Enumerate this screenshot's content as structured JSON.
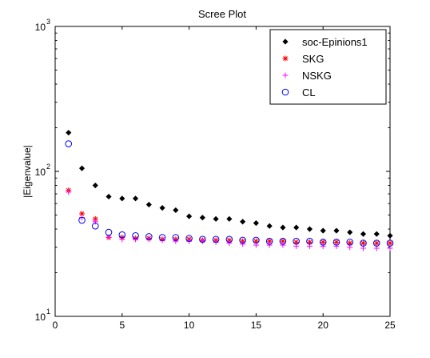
{
  "chart_data": {
    "type": "scatter",
    "title": "Scree Plot",
    "xlabel": "",
    "ylabel": "|Eigenvalue|",
    "xlim": [
      0,
      25
    ],
    "ylim": [
      10,
      1000
    ],
    "yscale": "log",
    "xticks": [
      0,
      5,
      10,
      15,
      20,
      25
    ],
    "yticks": [
      {
        "value": 10,
        "base": "10",
        "exp": "1"
      },
      {
        "value": 100,
        "base": "10",
        "exp": "2"
      },
      {
        "value": 1000,
        "base": "10",
        "exp": "3"
      }
    ],
    "grid": false,
    "legend_position": "top-right",
    "series": [
      {
        "name": "soc-Epinions1",
        "marker": "dot",
        "color": "#000000",
        "x": [
          1,
          2,
          3,
          4,
          5,
          6,
          7,
          8,
          9,
          10,
          11,
          12,
          13,
          14,
          15,
          16,
          17,
          18,
          19,
          20,
          21,
          22,
          23,
          24,
          25
        ],
        "y": [
          185,
          105,
          80,
          67,
          65,
          65,
          59,
          56,
          54,
          49,
          48,
          47,
          47,
          45,
          44,
          42,
          41,
          41,
          40,
          39,
          39,
          38,
          37,
          37,
          36
        ]
      },
      {
        "name": "SKG",
        "marker": "asterisk",
        "color": "#ff0000",
        "x": [
          1,
          2,
          3,
          4,
          5,
          6,
          7,
          8,
          9,
          10,
          11,
          12,
          13,
          14,
          15,
          16,
          17,
          18,
          19,
          20,
          21,
          22,
          23,
          24,
          25
        ],
        "y": [
          74,
          51,
          47,
          35,
          35,
          34.5,
          34.5,
          34,
          34,
          34,
          33.5,
          33.5,
          33.5,
          33,
          33,
          33,
          33,
          32.5,
          32.5,
          32.5,
          32.5,
          32,
          32,
          32,
          32
        ]
      },
      {
        "name": "NSKG",
        "marker": "plus",
        "color": "#ff00ff",
        "x": [
          1,
          2,
          3,
          4,
          5,
          6,
          7,
          8,
          9,
          10,
          11,
          12,
          13,
          14,
          15,
          16,
          17,
          18,
          19,
          20,
          21,
          22,
          23,
          24,
          25
        ],
        "y": [
          72,
          48,
          45,
          35,
          34,
          34,
          34,
          33.5,
          33,
          33,
          33,
          32.5,
          32,
          31.5,
          31,
          31,
          31,
          30.5,
          30.5,
          30.5,
          30.5,
          30,
          29.5,
          29.5,
          29.5
        ]
      },
      {
        "name": "CL",
        "marker": "circle",
        "color": "#0000ff",
        "x": [
          1,
          2,
          3,
          4,
          5,
          6,
          7,
          8,
          9,
          10,
          11,
          12,
          13,
          14,
          15,
          16,
          17,
          18,
          19,
          20,
          21,
          22,
          23,
          24,
          25
        ],
        "y": [
          155,
          46,
          42,
          38,
          36.5,
          36,
          35.5,
          35,
          35,
          34.5,
          34,
          34,
          34,
          33.5,
          33.5,
          33,
          33,
          33,
          33,
          32.5,
          32.5,
          32.5,
          32,
          32,
          32
        ]
      }
    ]
  }
}
